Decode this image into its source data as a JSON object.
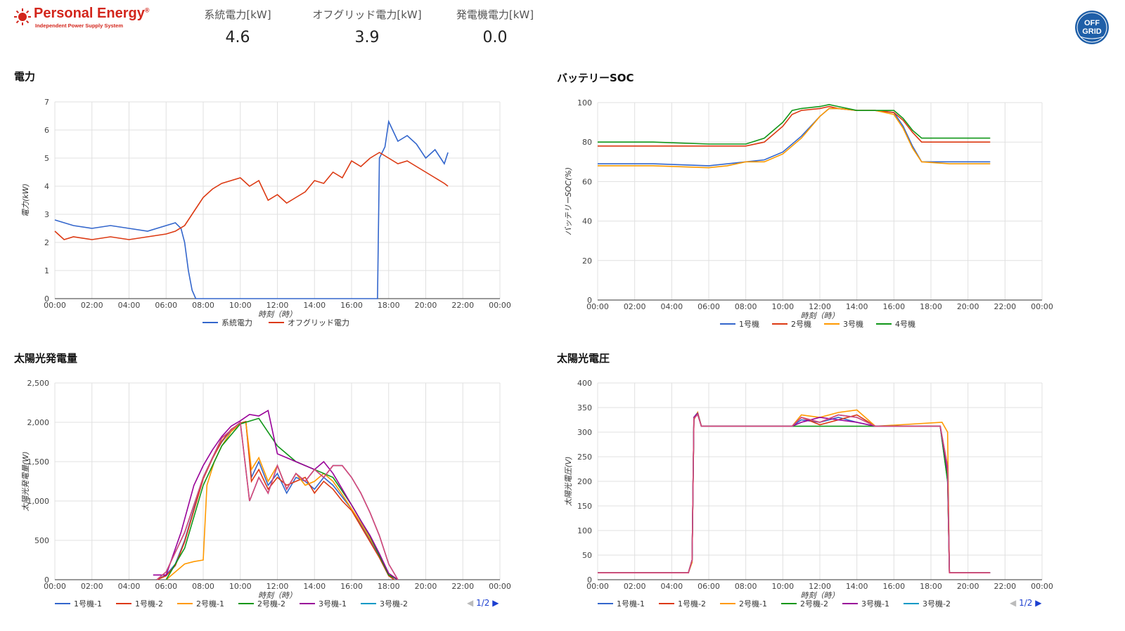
{
  "header": {
    "brand": "Personal Energy",
    "brand_reg": "®",
    "tagline": "Independent Power Supply System",
    "stats": [
      {
        "label": "系統電力[kW]",
        "value": "4.6"
      },
      {
        "label": "オフグリッド電力[kW]",
        "value": "3.9"
      },
      {
        "label": "発電機電力[kW]",
        "value": "0.0"
      }
    ],
    "offgrid_badge": [
      "OFF",
      "GRID"
    ]
  },
  "x_ticks": [
    "00:00",
    "02:00",
    "04:00",
    "06:00",
    "08:00",
    "10:00",
    "12:00",
    "14:00",
    "16:00",
    "18:00",
    "20:00",
    "22:00",
    "00:00"
  ],
  "x_label": "時刻（時）",
  "charts": {
    "power": {
      "title": "電力",
      "ylabel": "電力(kW)",
      "ylim": [
        0,
        7
      ],
      "yticks": [
        "0",
        "1",
        "2",
        "3",
        "4",
        "5",
        "6",
        "7"
      ],
      "legend": [
        "系統電力",
        "オフグリッド電力"
      ]
    },
    "soc": {
      "title": "バッテリーSOC",
      "ylabel": "バッテリーSOC(%)",
      "ylim": [
        0,
        100
      ],
      "yticks": [
        "0",
        "20",
        "40",
        "60",
        "80",
        "100"
      ],
      "legend": [
        "1号機",
        "2号機",
        "3号機",
        "4号機"
      ]
    },
    "pv_power": {
      "title": "太陽光発電量",
      "ylabel": "太陽光発電量(W)",
      "ylim": [
        0,
        2500
      ],
      "yticks": [
        "0",
        "500",
        "1,000",
        "1,500",
        "2,000",
        "2,500"
      ],
      "legend": [
        "1号機-1",
        "1号機-2",
        "2号機-1",
        "2号機-2",
        "3号機-1",
        "3号機-2"
      ],
      "pager": "1/2"
    },
    "pv_voltage": {
      "title": "太陽光電圧",
      "ylabel": "太陽光電圧(V)",
      "ylim": [
        0,
        400
      ],
      "yticks": [
        "0",
        "50",
        "100",
        "150",
        "200",
        "250",
        "300",
        "350",
        "400"
      ],
      "legend": [
        "1号機-1",
        "1号機-2",
        "2号機-1",
        "2号機-2",
        "3号機-1",
        "3号機-2"
      ],
      "pager": "1/2"
    }
  },
  "colors": {
    "blue": "#3366cc",
    "red": "#dc3912",
    "orange": "#ff9900",
    "green": "#109618",
    "purple": "#990099",
    "cyan": "#0099c6",
    "pink": "#dd4477"
  },
  "chart_data": [
    {
      "type": "line",
      "title": "電力",
      "xlabel": "時刻（時）",
      "ylabel": "電力(kW)",
      "ylim": [
        0,
        7
      ],
      "x_unit": "hour",
      "series": [
        {
          "name": "系統電力",
          "x": [
            0,
            1,
            2,
            3,
            4,
            5,
            6,
            6.5,
            6.8,
            7,
            7.2,
            7.4,
            7.6,
            8,
            10,
            12,
            14,
            16,
            17.2,
            17.4,
            17.5,
            17.8,
            18,
            18.5,
            19,
            19.5,
            20,
            20.5,
            21,
            21.2
          ],
          "y": [
            2.8,
            2.6,
            2.5,
            2.6,
            2.5,
            2.4,
            2.6,
            2.7,
            2.5,
            2.0,
            1.0,
            0.3,
            0,
            0,
            0,
            0,
            0,
            0,
            0,
            0,
            5.0,
            5.4,
            6.3,
            5.6,
            5.8,
            5.5,
            5.0,
            5.3,
            4.8,
            5.2
          ]
        },
        {
          "name": "オフグリッド電力",
          "x": [
            0,
            0.5,
            1,
            2,
            3,
            4,
            5,
            6,
            6.5,
            7,
            7.5,
            8,
            8.5,
            9,
            9.5,
            10,
            10.5,
            11,
            11.5,
            12,
            12.5,
            13,
            13.5,
            14,
            14.5,
            15,
            15.5,
            16,
            16.5,
            17,
            17.5,
            18,
            18.5,
            19,
            19.5,
            20,
            20.5,
            21,
            21.2
          ],
          "y": [
            2.4,
            2.1,
            2.2,
            2.1,
            2.2,
            2.1,
            2.2,
            2.3,
            2.4,
            2.6,
            3.1,
            3.6,
            3.9,
            4.1,
            4.2,
            4.3,
            4.0,
            4.2,
            3.5,
            3.7,
            3.4,
            3.6,
            3.8,
            4.2,
            4.1,
            4.5,
            4.3,
            4.9,
            4.7,
            5.0,
            5.2,
            5.0,
            4.8,
            4.9,
            4.7,
            4.5,
            4.3,
            4.1,
            4.0
          ]
        }
      ]
    },
    {
      "type": "line",
      "title": "バッテリーSOC",
      "xlabel": "時刻（時）",
      "ylabel": "バッテリーSOC(%)",
      "ylim": [
        0,
        100
      ],
      "x_unit": "hour",
      "series": [
        {
          "name": "1号機",
          "x": [
            0,
            3,
            6,
            8,
            9,
            10,
            11,
            12,
            12.5,
            13,
            14,
            15,
            16,
            16.5,
            17,
            17.5,
            19,
            21.2
          ],
          "y": [
            69,
            69,
            68,
            70,
            71,
            75,
            83,
            93,
            97,
            97,
            96,
            96,
            95,
            88,
            78,
            70,
            70,
            70
          ]
        },
        {
          "name": "2号機",
          "x": [
            0,
            3,
            6,
            8,
            9,
            10,
            10.5,
            11,
            12,
            12.5,
            13,
            14,
            15,
            16,
            16.5,
            17,
            17.5,
            19,
            21.2
          ],
          "y": [
            78,
            78,
            78,
            78,
            80,
            88,
            94,
            96,
            97,
            98,
            97,
            96,
            96,
            95,
            91,
            85,
            80,
            80,
            80
          ]
        },
        {
          "name": "3号機",
          "x": [
            0,
            3,
            6,
            7,
            8,
            9,
            10,
            11,
            12,
            12.5,
            13,
            14,
            15,
            16,
            16.5,
            17,
            17.5,
            19,
            21.2
          ],
          "y": [
            68,
            68,
            67,
            68,
            70,
            70,
            74,
            82,
            93,
            97,
            97,
            96,
            96,
            94,
            87,
            77,
            70,
            69,
            69
          ]
        },
        {
          "name": "4号機",
          "x": [
            0,
            3,
            6,
            8,
            9,
            10,
            10.5,
            11,
            12,
            12.5,
            13,
            14,
            15,
            16,
            16.5,
            17,
            17.5,
            19,
            21.2
          ],
          "y": [
            80,
            80,
            79,
            79,
            82,
            90,
            96,
            97,
            98,
            99,
            98,
            96,
            96,
            96,
            92,
            86,
            82,
            82,
            82
          ]
        }
      ]
    },
    {
      "type": "line",
      "title": "太陽光発電量",
      "xlabel": "時刻（時）",
      "ylabel": "太陽光発電量(W)",
      "ylim": [
        0,
        2500
      ],
      "x_unit": "hour",
      "series": [
        {
          "name": "1号機-1",
          "x": [
            5.5,
            6,
            6.5,
            7,
            7.5,
            8,
            8.5,
            9,
            9.5,
            10,
            10.3,
            10.6,
            11,
            11.5,
            12,
            12.5,
            13,
            13.5,
            14,
            14.5,
            15,
            15.5,
            16,
            16.5,
            17,
            17.5,
            18,
            18.3
          ],
          "y": [
            0,
            60,
            200,
            500,
            900,
            1300,
            1550,
            1750,
            1900,
            1980,
            2000,
            1300,
            1500,
            1200,
            1350,
            1100,
            1300,
            1250,
            1150,
            1300,
            1200,
            1050,
            900,
            700,
            500,
            300,
            60,
            0
          ]
        },
        {
          "name": "1号機-2",
          "x": [
            5.5,
            6,
            6.5,
            7,
            7.5,
            8,
            8.5,
            9,
            9.5,
            10,
            10.3,
            10.6,
            11,
            11.5,
            12,
            12.5,
            13,
            13.5,
            14,
            14.5,
            15,
            15.5,
            16,
            16.5,
            17,
            17.5,
            18,
            18.3
          ],
          "y": [
            0,
            50,
            180,
            480,
            880,
            1280,
            1540,
            1760,
            1910,
            1990,
            2010,
            1250,
            1400,
            1150,
            1300,
            1200,
            1250,
            1300,
            1100,
            1250,
            1150,
            1000,
            880,
            680,
            480,
            280,
            50,
            0
          ]
        },
        {
          "name": "2号機-1",
          "x": [
            6,
            7,
            7.5,
            8,
            8.2,
            8.6,
            9,
            9.5,
            10,
            10.3,
            10.6,
            11,
            11.5,
            12,
            12.5,
            13,
            13.5,
            14,
            14.5,
            15,
            15.5,
            16,
            16.5,
            17,
            17.5,
            18,
            18.5
          ],
          "y": [
            0,
            200,
            230,
            250,
            1200,
            1500,
            1700,
            1880,
            1980,
            2000,
            1400,
            1550,
            1250,
            1450,
            1150,
            1350,
            1200,
            1250,
            1350,
            1250,
            1080,
            900,
            720,
            520,
            320,
            80,
            0
          ]
        },
        {
          "name": "2号機-2",
          "x": [
            6,
            7,
            8,
            9,
            10,
            11,
            12,
            13,
            14,
            15,
            16,
            17,
            18,
            18.5
          ],
          "y": [
            0,
            400,
            1200,
            1700,
            1980,
            2050,
            1700,
            1500,
            1400,
            1300,
            950,
            550,
            60,
            0
          ]
        },
        {
          "name": "3号機-1",
          "x": [
            5.3,
            6,
            6.8,
            7.5,
            8,
            8.5,
            9,
            9.5,
            10,
            10.5,
            11,
            11.5,
            12,
            12.5,
            13,
            13.5,
            14,
            14.5,
            15,
            15.5,
            16,
            16.5,
            17,
            17.5,
            18,
            18.5
          ],
          "y": [
            60,
            60,
            600,
            1200,
            1450,
            1650,
            1820,
            1950,
            2020,
            2100,
            2080,
            2150,
            1600,
            1550,
            1500,
            1450,
            1400,
            1500,
            1350,
            1150,
            950,
            750,
            560,
            330,
            80,
            0
          ]
        },
        {
          "name": "3号機-2",
          "x": [
            5.5,
            6,
            7,
            8,
            9,
            10,
            10.5,
            11,
            11.5,
            12,
            12.5,
            13,
            13.5,
            14,
            14.5,
            15,
            15.5,
            16,
            16.5,
            17,
            17.5,
            18,
            18.5
          ],
          "y": [
            0,
            100,
            600,
            1300,
            1800,
            2000,
            1000,
            1300,
            1100,
            1450,
            1150,
            1350,
            1250,
            1400,
            1300,
            1450,
            1450,
            1300,
            1100,
            850,
            560,
            200,
            0
          ]
        }
      ]
    },
    {
      "type": "line",
      "title": "太陽光電圧",
      "xlabel": "時刻（時）",
      "ylabel": "太陽光電圧(V)",
      "ylim": [
        0,
        400
      ],
      "x_unit": "hour",
      "series": [
        {
          "name": "1号機-1",
          "x": [
            0,
            4.9,
            5.1,
            5.2,
            5.4,
            5.6,
            6,
            10.5,
            11,
            12,
            13,
            14,
            15,
            18.5,
            18.9,
            19,
            21.2
          ],
          "y": [
            14,
            14,
            40,
            330,
            340,
            312,
            312,
            312,
            325,
            320,
            330,
            320,
            312,
            312,
            200,
            14,
            14
          ]
        },
        {
          "name": "1号機-2",
          "x": [
            0,
            4.9,
            5.1,
            5.2,
            5.4,
            5.6,
            6,
            10.5,
            11,
            12,
            13,
            14,
            15,
            18.5,
            18.9,
            19,
            21.2
          ],
          "y": [
            14,
            14,
            40,
            330,
            338,
            312,
            312,
            312,
            330,
            315,
            325,
            335,
            312,
            312,
            210,
            14,
            14
          ]
        },
        {
          "name": "2号機-1",
          "x": [
            0,
            4.9,
            5.1,
            5.2,
            5.4,
            5.6,
            6,
            10.5,
            11,
            12,
            13,
            14,
            15,
            18.6,
            18.9,
            19,
            21.2
          ],
          "y": [
            14,
            14,
            35,
            325,
            340,
            312,
            312,
            312,
            335,
            330,
            340,
            345,
            312,
            320,
            300,
            14,
            14
          ]
        },
        {
          "name": "2号機-2",
          "x": [
            0,
            4.9,
            5.1,
            5.2,
            5.4,
            5.6,
            6,
            18.5,
            18.9,
            19,
            21.2
          ],
          "y": [
            14,
            14,
            40,
            330,
            338,
            312,
            312,
            312,
            200,
            14,
            14
          ]
        },
        {
          "name": "3号機-1",
          "x": [
            0,
            4.9,
            5.1,
            5.2,
            5.4,
            5.6,
            6,
            10.5,
            11,
            12,
            13,
            14,
            15,
            18.5,
            18.9,
            19,
            21.2
          ],
          "y": [
            14,
            14,
            40,
            330,
            338,
            312,
            312,
            312,
            320,
            330,
            325,
            320,
            312,
            312,
            220,
            14,
            14
          ]
        },
        {
          "name": "3号機-2",
          "x": [
            0,
            4.9,
            5.1,
            5.2,
            5.4,
            5.6,
            6,
            10.5,
            11,
            12,
            13,
            14,
            15,
            18.5,
            18.9,
            19,
            21.2
          ],
          "y": [
            14,
            14,
            40,
            328,
            336,
            312,
            312,
            312,
            330,
            320,
            335,
            330,
            312,
            312,
            230,
            14,
            14
          ]
        }
      ]
    }
  ]
}
